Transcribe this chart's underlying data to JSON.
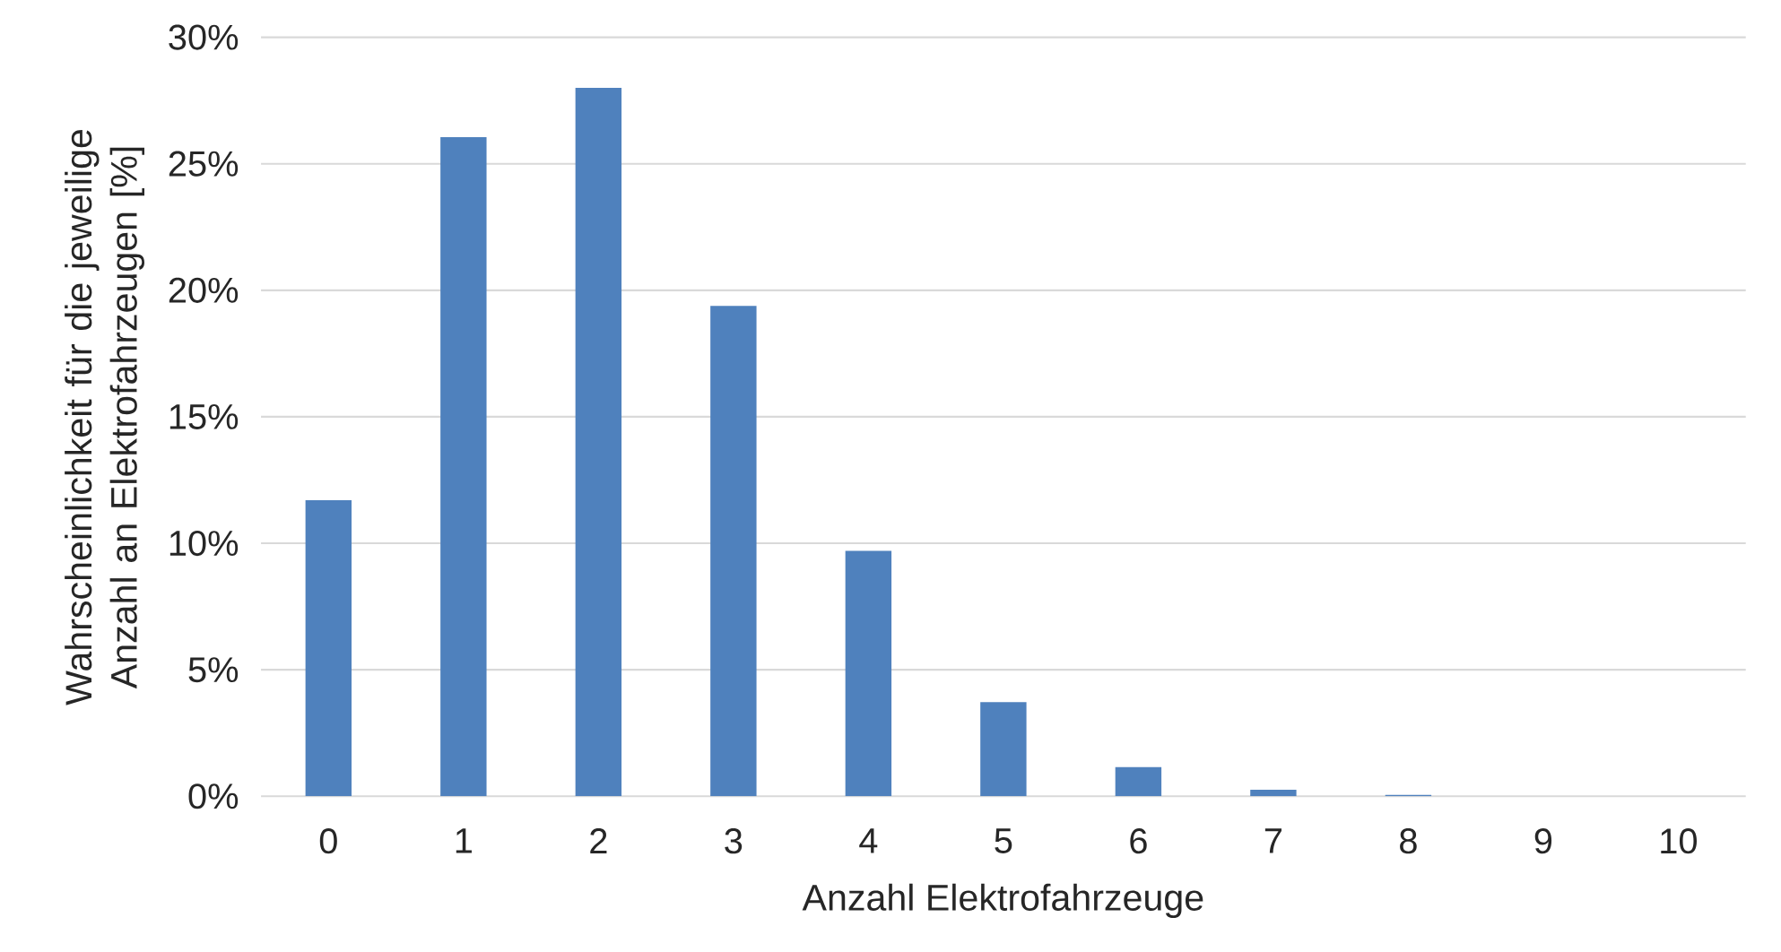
{
  "chart_data": {
    "type": "bar",
    "xlabel": "Anzahl Elektrofahrzeuge",
    "ylabel": "Wahrscheinlichkeit für die jeweilige Anzahl an Elektrofahrzeugen [%]",
    "categories": [
      "0",
      "1",
      "2",
      "3",
      "4",
      "5",
      "6",
      "7",
      "8",
      "9",
      "10"
    ],
    "values": [
      11.7,
      26.05,
      28.0,
      19.38,
      9.7,
      3.72,
      1.15,
      0.26,
      0.05,
      0.0,
      0.0
    ],
    "color": "#4f81bd",
    "ylim": [
      0,
      30
    ],
    "yticks": [
      {
        "value": 0,
        "label": "0%"
      },
      {
        "value": 5,
        "label": "5%"
      },
      {
        "value": 10,
        "label": "10%"
      },
      {
        "value": 15,
        "label": "15%"
      },
      {
        "value": 20,
        "label": "20%"
      },
      {
        "value": 25,
        "label": "25%"
      },
      {
        "value": 30,
        "label": "30%"
      }
    ],
    "grid": "y"
  }
}
